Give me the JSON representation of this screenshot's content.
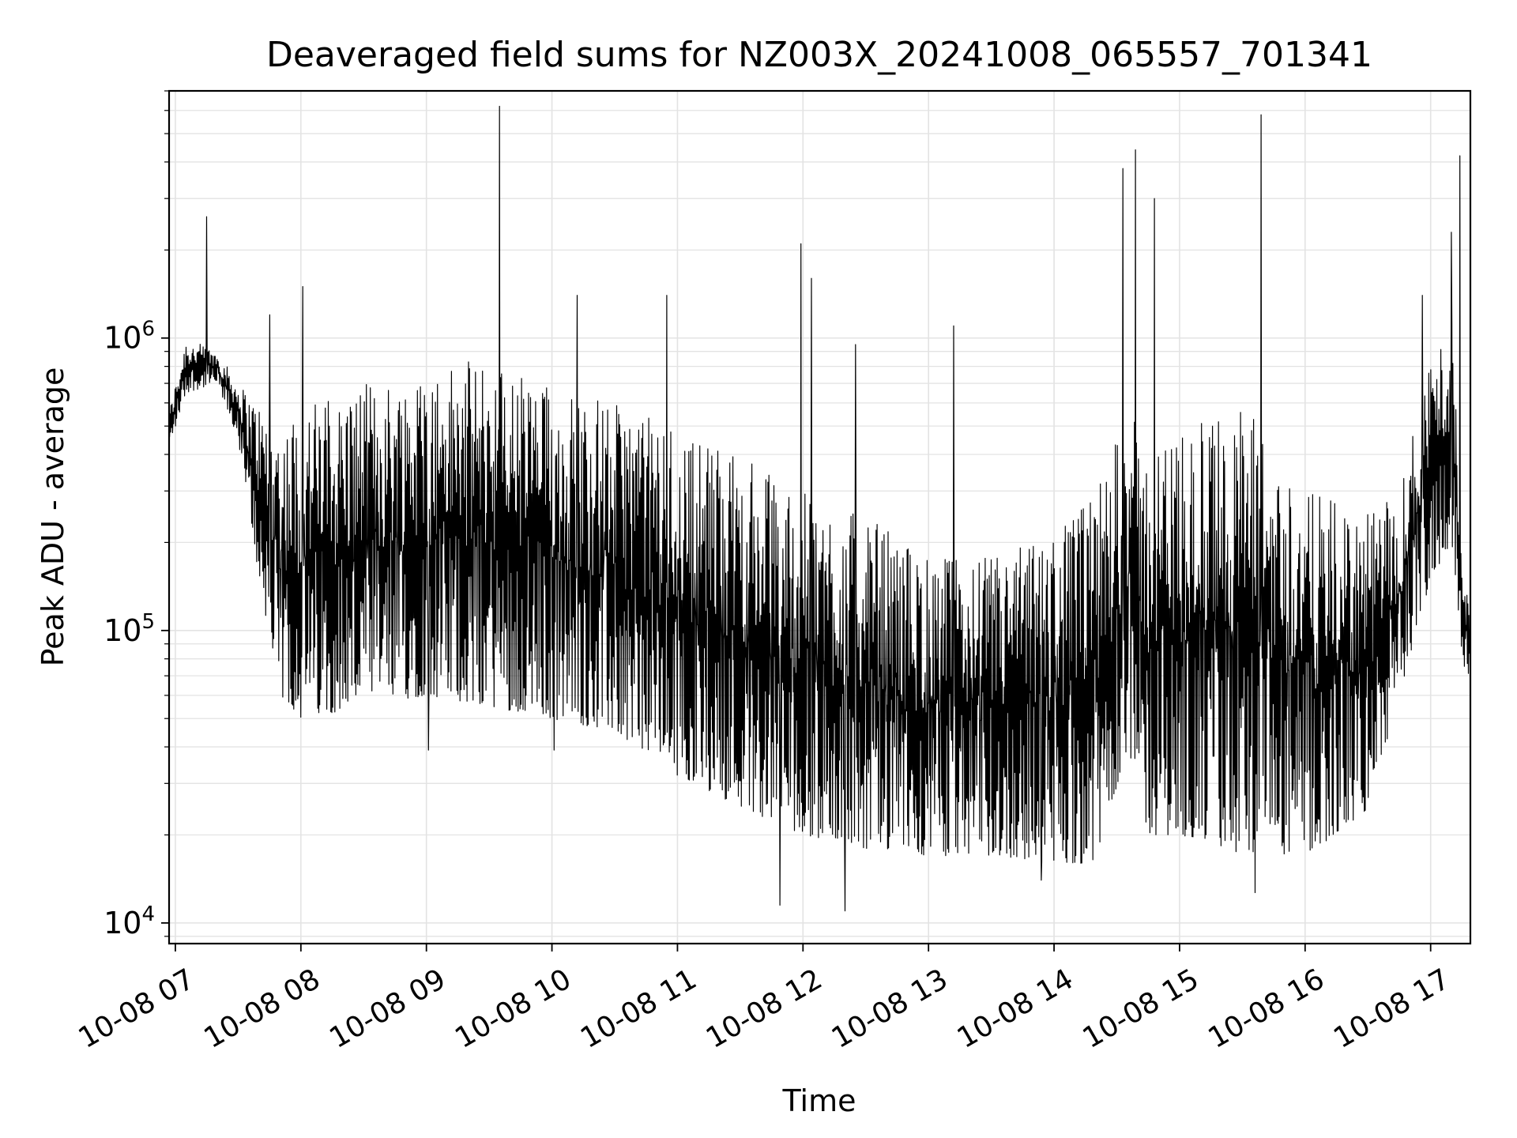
{
  "chart_data": {
    "type": "line",
    "title": "Deaveraged field sums for NZ003X_20241008_065557_701341",
    "xlabel": "Time",
    "ylabel": "Peak ADU - average",
    "yscale": "log",
    "ylim": [
      8500,
      7000000
    ],
    "xlim": [
      "2024-10-08 06:57",
      "2024-10-08 17:19"
    ],
    "grid": true,
    "x_tick_labels": [
      "10-08 07",
      "10-08 08",
      "10-08 09",
      "10-08 10",
      "10-08 11",
      "10-08 12",
      "10-08 13",
      "10-08 14",
      "10-08 15",
      "10-08 16",
      "10-08 17"
    ],
    "y_ticks": [
      {
        "base": "10",
        "exponent": "4",
        "value": 10000
      },
      {
        "base": "10",
        "exponent": "5",
        "value": 100000
      },
      {
        "base": "10",
        "exponent": "6",
        "value": 1000000
      }
    ],
    "line_color": "#000000",
    "series": [
      {
        "name": "",
        "envelope": [
          {
            "time": "06:57",
            "low": 420000,
            "high": 560000
          },
          {
            "time": "07:05",
            "low": 650000,
            "high": 1000000
          },
          {
            "time": "07:20",
            "low": 700000,
            "high": 900000
          },
          {
            "time": "07:30",
            "low": 450000,
            "high": 700000
          },
          {
            "time": "07:40",
            "low": 150000,
            "high": 600000
          },
          {
            "time": "07:50",
            "low": 60000,
            "high": 500000
          },
          {
            "time": "08:00",
            "low": 50000,
            "high": 600000
          },
          {
            "time": "08:30",
            "low": 55000,
            "high": 700000
          },
          {
            "time": "09:00",
            "low": 60000,
            "high": 800000
          },
          {
            "time": "09:30",
            "low": 55000,
            "high": 850000
          },
          {
            "time": "10:00",
            "low": 50000,
            "high": 700000
          },
          {
            "time": "10:30",
            "low": 45000,
            "high": 600000
          },
          {
            "time": "11:00",
            "low": 32000,
            "high": 500000
          },
          {
            "time": "11:30",
            "low": 25000,
            "high": 400000
          },
          {
            "time": "12:00",
            "low": 20000,
            "high": 300000
          },
          {
            "time": "12:30",
            "low": 18000,
            "high": 250000
          },
          {
            "time": "13:00",
            "low": 17000,
            "high": 180000
          },
          {
            "time": "13:30",
            "low": 17000,
            "high": 180000
          },
          {
            "time": "14:00",
            "low": 16000,
            "high": 220000
          },
          {
            "time": "14:20",
            "low": 16000,
            "high": 300000
          },
          {
            "time": "14:35",
            "low": 40000,
            "high": 600000
          },
          {
            "time": "14:45",
            "low": 20000,
            "high": 400000
          },
          {
            "time": "15:00",
            "low": 20000,
            "high": 500000
          },
          {
            "time": "15:30",
            "low": 17000,
            "high": 600000
          },
          {
            "time": "16:00",
            "low": 17000,
            "high": 300000
          },
          {
            "time": "16:30",
            "low": 24000,
            "high": 250000
          },
          {
            "time": "16:45",
            "low": 60000,
            "high": 300000
          },
          {
            "time": "17:00",
            "low": 150000,
            "high": 900000
          },
          {
            "time": "17:10",
            "low": 200000,
            "high": 1200000
          },
          {
            "time": "17:15",
            "low": 80000,
            "high": 250000
          },
          {
            "time": "17:19",
            "low": 65000,
            "high": 95000
          }
        ],
        "spikes": [
          {
            "time": "07:15",
            "value": 2600000
          },
          {
            "time": "07:45",
            "value": 1200000
          },
          {
            "time": "08:01",
            "value": 1500000
          },
          {
            "time": "09:35",
            "value": 6200000
          },
          {
            "time": "10:12",
            "value": 1400000
          },
          {
            "time": "10:55",
            "value": 1400000
          },
          {
            "time": "11:59",
            "value": 2100000
          },
          {
            "time": "12:04",
            "value": 1600000
          },
          {
            "time": "12:25",
            "value": 950000
          },
          {
            "time": "13:12",
            "value": 1100000
          },
          {
            "time": "14:33",
            "value": 3800000
          },
          {
            "time": "14:39",
            "value": 4400000
          },
          {
            "time": "14:48",
            "value": 3000000
          },
          {
            "time": "15:39",
            "value": 5800000
          },
          {
            "time": "16:56",
            "value": 1400000
          },
          {
            "time": "17:10",
            "value": 2300000
          },
          {
            "time": "17:14",
            "value": 4200000
          }
        ],
        "dips": [
          {
            "time": "09:01",
            "value": 39000
          },
          {
            "time": "10:01",
            "value": 39000
          },
          {
            "time": "11:49",
            "value": 11500
          },
          {
            "time": "12:20",
            "value": 11000
          },
          {
            "time": "13:54",
            "value": 14000
          },
          {
            "time": "15:36",
            "value": 12700
          }
        ]
      }
    ]
  }
}
